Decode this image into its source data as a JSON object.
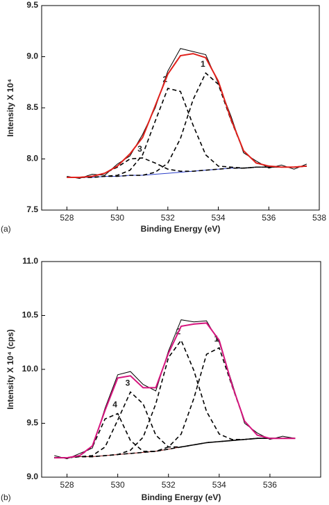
{
  "chart_data": [
    {
      "type": "line",
      "panel_label": "(a)",
      "xlabel": "Binding Energy (eV)",
      "ylabel": "Intensity X 10⁴",
      "xlim": [
        527,
        538
      ],
      "xticks": [
        528,
        530,
        532,
        534,
        536,
        538
      ],
      "ylim": [
        7.5,
        9.5
      ],
      "yticks": [
        7.5,
        {
          "value": 8,
          "label": "8.0"
        },
        8.5,
        {
          "value": 9,
          "label": "9.0"
        },
        9.5
      ],
      "x": [
        528,
        528.5,
        529,
        529.5,
        530,
        530.5,
        531,
        531.5,
        532,
        532.5,
        533,
        533.5,
        534,
        534.5,
        535,
        535.5,
        536,
        536.5,
        537,
        537.5
      ],
      "series": [
        {
          "color": "#000000",
          "style": "solid",
          "values": [
            7.83,
            7.81,
            7.85,
            7.84,
            7.95,
            8.03,
            8.24,
            8.5,
            8.86,
            9.08,
            9.05,
            9.02,
            8.74,
            8.42,
            8.06,
            7.98,
            7.91,
            7.94,
            7.9,
            7.95
          ]
        },
        {
          "color": "#2b3fc9",
          "style": "solid",
          "values": [
            7.82,
            7.82,
            7.82,
            7.83,
            7.83,
            7.84,
            7.84,
            7.85,
            7.86,
            7.87,
            7.88,
            7.89,
            7.9,
            7.91,
            7.91,
            7.92,
            7.92,
            7.92,
            7.92,
            7.93
          ]
        },
        {
          "name": "1",
          "color": "#000000",
          "style": "dashed",
          "values": [
            7.82,
            7.82,
            7.82,
            7.83,
            7.83,
            7.84,
            7.84,
            7.87,
            7.96,
            8.2,
            8.58,
            8.84,
            8.73,
            8.38,
            8.08,
            7.96,
            7.93,
            7.92,
            7.92,
            7.93
          ]
        },
        {
          "name": "2",
          "color": "#000000",
          "style": "dashed",
          "values": [
            7.82,
            7.82,
            7.82,
            7.83,
            7.84,
            7.89,
            8.04,
            8.37,
            8.69,
            8.66,
            8.33,
            8.04,
            7.93,
            7.92,
            7.91,
            7.92,
            7.92,
            7.92,
            7.92,
            7.93
          ]
        },
        {
          "name": "3",
          "color": "#000000",
          "style": "dashed",
          "values": [
            7.82,
            7.82,
            7.83,
            7.86,
            7.92,
            8.0,
            8.01,
            7.96,
            7.9,
            7.88,
            7.88,
            7.89,
            7.9,
            7.91,
            7.91,
            7.92,
            7.92,
            7.92,
            7.92,
            7.93
          ]
        },
        {
          "color": "#e0201b",
          "style": "thick",
          "values": [
            7.82,
            7.82,
            7.83,
            7.86,
            7.93,
            8.05,
            8.21,
            8.52,
            8.83,
            9.01,
            9.03,
            8.99,
            8.76,
            8.39,
            8.08,
            7.96,
            7.93,
            7.92,
            7.92,
            7.93
          ]
        }
      ]
    },
    {
      "type": "line",
      "panel_label": "(b)",
      "xlabel": "Binding Energy (eV)",
      "ylabel": "Intensity X 10⁴ (cps)",
      "xlim": [
        527,
        538
      ],
      "xticks": [
        528,
        530,
        532,
        534,
        536
      ],
      "ylim": [
        9,
        11
      ],
      "yticks": [
        {
          "value": 9,
          "label": "9.0"
        },
        9.5,
        {
          "value": 10,
          "label": "10.0"
        },
        10.5,
        {
          "value": 11,
          "label": "11.0"
        }
      ],
      "x": [
        527.5,
        528,
        528.5,
        529,
        529.5,
        530,
        530.5,
        531,
        531.5,
        532,
        532.5,
        533,
        533.5,
        534,
        534.5,
        535,
        535.5,
        536,
        536.5,
        537
      ],
      "series": [
        {
          "color": "#000000",
          "style": "solid",
          "values": [
            9.2,
            9.17,
            9.22,
            9.27,
            9.64,
            9.95,
            9.98,
            9.86,
            9.8,
            10.17,
            10.46,
            10.44,
            10.45,
            10.25,
            9.88,
            9.5,
            9.41,
            9.35,
            9.38,
            9.36
          ]
        },
        {
          "color": "#8b1a1a",
          "style": "solid",
          "values": [
            9.18,
            9.18,
            9.19,
            9.19,
            9.2,
            9.21,
            9.22,
            9.23,
            9.24,
            9.26,
            9.28,
            9.3,
            9.32,
            9.33,
            9.34,
            9.35,
            9.36,
            9.36,
            9.36,
            9.36
          ]
        },
        {
          "name": "1",
          "color": "#000000",
          "style": "dashed",
          "values": [
            9.18,
            9.18,
            9.19,
            9.19,
            9.2,
            9.21,
            9.22,
            9.23,
            9.24,
            9.28,
            9.4,
            9.73,
            10.14,
            10.2,
            9.85,
            9.52,
            9.39,
            9.36,
            9.36,
            9.36
          ]
        },
        {
          "name": "2",
          "color": "#000000",
          "style": "dashed",
          "values": [
            9.18,
            9.18,
            9.19,
            9.19,
            9.2,
            9.21,
            9.25,
            9.37,
            9.68,
            10.11,
            10.27,
            9.99,
            9.61,
            9.4,
            9.35,
            9.35,
            9.36,
            9.36,
            9.36,
            9.36
          ]
        },
        {
          "name": "3",
          "color": "#000000",
          "style": "dashed",
          "values": [
            9.18,
            9.18,
            9.19,
            9.2,
            9.28,
            9.53,
            9.79,
            9.68,
            9.39,
            9.28,
            9.28,
            9.3,
            9.32,
            9.33,
            9.34,
            9.35,
            9.36,
            9.36,
            9.36,
            9.36
          ]
        },
        {
          "name": "4",
          "color": "#000000",
          "style": "dashed",
          "values": [
            9.18,
            9.18,
            9.2,
            9.28,
            9.54,
            9.59,
            9.34,
            9.24,
            9.24,
            9.26,
            9.28,
            9.3,
            9.32,
            9.33,
            9.34,
            9.35,
            9.36,
            9.36,
            9.36,
            9.36
          ]
        },
        {
          "color": "#d6157e",
          "style": "thick",
          "values": [
            9.18,
            9.18,
            9.2,
            9.29,
            9.62,
            9.92,
            9.94,
            9.83,
            9.83,
            10.15,
            10.4,
            10.42,
            10.43,
            10.27,
            9.86,
            9.52,
            9.39,
            9.36,
            9.36,
            9.36
          ]
        }
      ]
    }
  ]
}
